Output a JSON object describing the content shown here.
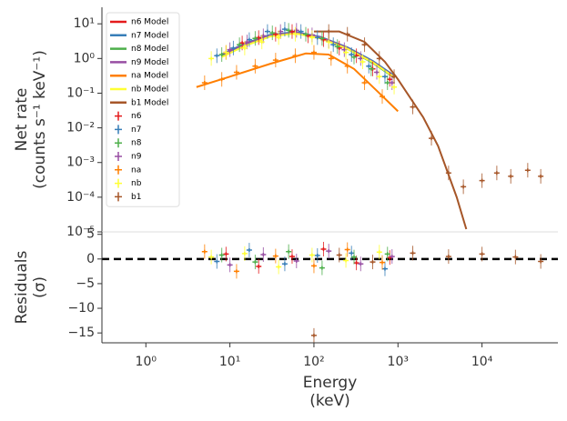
{
  "chart_data": [
    {
      "type": "line",
      "ylabel": [
        "Net rate",
        "(counts s⁻¹ keV⁻¹)"
      ],
      "xscale": "log",
      "yscale": "log",
      "xlim": [
        0.3,
        80000
      ],
      "ylim": [
        1e-05,
        30
      ],
      "yticks": [
        {
          "value": 10,
          "label": "10¹"
        },
        {
          "value": 1,
          "label": "10⁰"
        },
        {
          "value": 0.1,
          "label": "10⁻¹"
        },
        {
          "value": 0.01,
          "label": "10⁻²"
        },
        {
          "value": 0.001,
          "label": "10⁻³"
        },
        {
          "value": 0.0001,
          "label": "10⁻⁴"
        },
        {
          "value": 1e-05,
          "label": "10⁻⁵"
        }
      ],
      "legend": "upper left",
      "series": [
        {
          "name": "n6 Model",
          "type": "line",
          "color": "#e41a1c",
          "x": [
            8,
            15,
            30,
            60,
            120,
            250,
            500,
            900
          ],
          "values": [
            1.2,
            2.5,
            4.5,
            5.5,
            4,
            2,
            0.8,
            0.3
          ]
        },
        {
          "name": "n7 Model",
          "type": "line",
          "color": "#377eb8",
          "x": [
            8,
            15,
            30,
            60,
            120,
            250,
            500,
            900
          ],
          "values": [
            1.3,
            2.7,
            4.8,
            5.8,
            4.2,
            2.1,
            0.85,
            0.32
          ]
        },
        {
          "name": "n8 Model",
          "type": "line",
          "color": "#4daf4a",
          "x": [
            8,
            15,
            30,
            60,
            120,
            250,
            500,
            900
          ],
          "values": [
            1.2,
            2.4,
            4.4,
            5.4,
            3.9,
            1.9,
            0.75,
            0.28
          ]
        },
        {
          "name": "n9 Model",
          "type": "line",
          "color": "#984ea3",
          "x": [
            8,
            15,
            30,
            60,
            120,
            250,
            500,
            900
          ],
          "values": [
            1.25,
            2.6,
            4.6,
            5.6,
            4.1,
            2,
            0.8,
            0.3
          ]
        },
        {
          "name": "na Model",
          "type": "line",
          "color": "#ff7f00",
          "x": [
            4,
            10,
            30,
            80,
            150,
            300,
            600,
            1000
          ],
          "values": [
            0.15,
            0.3,
            0.7,
            1.4,
            1.3,
            0.5,
            0.1,
            0.03
          ]
        },
        {
          "name": "nb Model",
          "type": "line",
          "color": "#ffff33",
          "x": [
            8,
            15,
            30,
            60,
            120,
            250,
            500,
            900
          ],
          "values": [
            1.1,
            2.3,
            4.3,
            5.3,
            3.8,
            1.9,
            0.78,
            0.29
          ]
        },
        {
          "name": "b1 Model",
          "type": "line",
          "color": "#a65628",
          "x": [
            100,
            200,
            400,
            700,
            1000,
            2000,
            3000,
            5000,
            6500
          ],
          "values": [
            6,
            6,
            3,
            0.8,
            0.25,
            0.02,
            0.003,
            0.0001,
            1.2e-05
          ]
        },
        {
          "name": "n6",
          "type": "scatter",
          "color": "#e41a1c",
          "x": [
            9,
            14,
            22,
            35,
            55,
            85,
            130,
            200,
            320,
            500,
            800
          ],
          "values": [
            1.5,
            2.8,
            4,
            5,
            6,
            4.5,
            3.5,
            2,
            1.2,
            0.5,
            0.25
          ]
        },
        {
          "name": "n7",
          "type": "scatter",
          "color": "#377eb8",
          "x": [
            7,
            11,
            17,
            28,
            45,
            70,
            110,
            170,
            280,
            450,
            700
          ],
          "values": [
            1.2,
            2,
            3.5,
            6,
            7,
            6,
            4,
            2.5,
            1.3,
            0.6,
            0.3
          ]
        },
        {
          "name": "n8",
          "type": "scatter",
          "color": "#4daf4a",
          "x": [
            8,
            13,
            20,
            32,
            50,
            80,
            125,
            190,
            300,
            480,
            750
          ],
          "values": [
            1.3,
            2.5,
            3.8,
            5.5,
            6.5,
            5,
            3.8,
            2.2,
            1.1,
            0.5,
            0.2
          ]
        },
        {
          "name": "n9",
          "type": "scatter",
          "color": "#984ea3",
          "x": [
            10,
            16,
            25,
            40,
            62,
            95,
            150,
            230,
            360,
            560,
            850
          ],
          "values": [
            1.8,
            3,
            4.5,
            6,
            6.5,
            4.8,
            3.2,
            1.8,
            1,
            0.4,
            0.2
          ]
        },
        {
          "name": "na",
          "type": "scatter",
          "color": "#ff7f00",
          "x": [
            5,
            8,
            12,
            20,
            35,
            60,
            100,
            160,
            250,
            400,
            650
          ],
          "values": [
            0.2,
            0.25,
            0.4,
            0.6,
            0.9,
            1.2,
            1.5,
            1,
            0.6,
            0.2,
            0.08
          ]
        },
        {
          "name": "nb",
          "type": "scatter",
          "color": "#ffff33",
          "x": [
            6,
            9,
            15,
            24,
            38,
            60,
            95,
            150,
            240,
            380,
            600,
            900
          ],
          "values": [
            1,
            1.5,
            2,
            3,
            4,
            5,
            4,
            3,
            1.5,
            0.8,
            0.3,
            0.15
          ]
        },
        {
          "name": "b1",
          "type": "scatter",
          "color": "#a65628",
          "x": [
            150,
            250,
            400,
            600,
            900,
            1500,
            2500,
            4000,
            6000,
            10000,
            15000,
            22000,
            35000,
            50000
          ],
          "values": [
            6,
            5,
            2.5,
            1,
            0.3,
            0.04,
            0.005,
            0.0005,
            0.0002,
            0.0003,
            0.0005,
            0.0004,
            0.0006,
            0.0004
          ]
        }
      ]
    },
    {
      "type": "scatter",
      "ylabel": [
        "Residuals",
        "(σ)"
      ],
      "xlabel": [
        "Energy",
        "(keV)"
      ],
      "xscale": "log",
      "xlim": [
        0.3,
        80000
      ],
      "ylim": [
        -17,
        5.5
      ],
      "xticks": [
        {
          "value": 1,
          "label": "10⁰"
        },
        {
          "value": 10,
          "label": "10¹"
        },
        {
          "value": 100,
          "label": "10²"
        },
        {
          "value": 1000,
          "label": "10³"
        },
        {
          "value": 10000,
          "label": "10⁴"
        }
      ],
      "yticks": [
        5,
        0,
        {
          "value": -5,
          "label": "−5"
        },
        {
          "value": -10,
          "label": "−10"
        },
        {
          "value": -15,
          "label": "−15"
        }
      ],
      "hline": 0,
      "series": [
        {
          "name": "n6",
          "color": "#e41a1c",
          "x": [
            9,
            22,
            55,
            130,
            320,
            800
          ],
          "values": [
            1,
            -1.5,
            0.5,
            2,
            -0.8,
            0.3
          ]
        },
        {
          "name": "n7",
          "color": "#377eb8",
          "x": [
            7,
            17,
            45,
            110,
            280,
            700
          ],
          "values": [
            -0.5,
            1.8,
            -1,
            0.7,
            1.2,
            -2
          ]
        },
        {
          "name": "n8",
          "color": "#4daf4a",
          "x": [
            8,
            20,
            50,
            125,
            300,
            750
          ],
          "values": [
            0.8,
            -0.6,
            1.5,
            -1.8,
            0.4,
            1
          ]
        },
        {
          "name": "n9",
          "color": "#984ea3",
          "x": [
            10,
            25,
            62,
            150,
            360,
            850
          ],
          "values": [
            -1.2,
            0.9,
            -0.4,
            1.6,
            -1,
            0.5
          ]
        },
        {
          "name": "na",
          "color": "#ff7f00",
          "x": [
            5,
            12,
            35,
            100,
            250,
            650
          ],
          "values": [
            1.5,
            -2.5,
            0.6,
            -1.4,
            1.9,
            -0.7
          ]
        },
        {
          "name": "nb",
          "color": "#ffff33",
          "x": [
            6,
            15,
            38,
            95,
            240,
            600
          ],
          "values": [
            0.4,
            1.1,
            -1.6,
            0.8,
            -0.3,
            1.4
          ]
        },
        {
          "name": "b1",
          "color": "#a65628",
          "x": [
            100,
            200,
            500,
            1500,
            4000,
            10000,
            25000,
            50000
          ],
          "values": [
            -15.5,
            0.8,
            -0.6,
            1.2,
            0.5,
            1,
            0.4,
            -0.5
          ]
        }
      ]
    }
  ]
}
